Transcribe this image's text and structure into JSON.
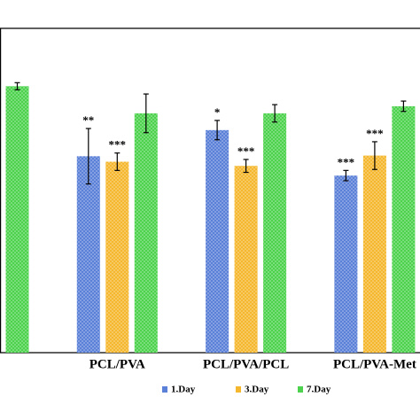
{
  "chart_data": {
    "type": "bar",
    "categories": [
      null,
      "PCL/PVA",
      "PCL/PVA/PCL",
      "PCL/PVA-Met"
    ],
    "series": [
      {
        "name": "1.Day",
        "color": "#5b80d8",
        "values": [
          null,
          60.9,
          69,
          54.9
        ],
        "errors": [
          null,
          8.6,
          3,
          1.6
        ],
        "annotations": [
          null,
          "**",
          "*",
          "***"
        ]
      },
      {
        "name": "3.Day",
        "color": "#f5b72e",
        "values": [
          null,
          59.2,
          57.9,
          61.1
        ],
        "errors": [
          null,
          2.7,
          2,
          4.3
        ],
        "annotations": [
          null,
          "***",
          "***",
          "***"
        ]
      },
      {
        "name": "7.Day",
        "color": "#4dd24d",
        "values": [
          82.6,
          74.2,
          74.2,
          76.4
        ],
        "errors": [
          1.1,
          6,
          2.7,
          1.6
        ],
        "annotations": [
          null,
          null,
          null,
          null
        ]
      }
    ],
    "ylim": [
      0,
      100
    ]
  }
}
